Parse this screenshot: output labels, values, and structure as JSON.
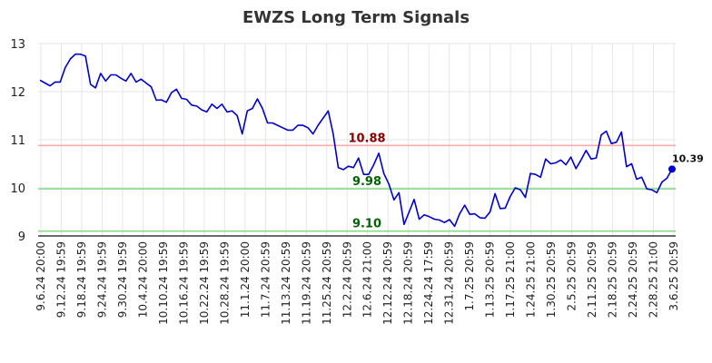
{
  "chart_data": {
    "type": "line",
    "title": "EWZS Long Term Signals",
    "xlabel": "",
    "ylabel": "",
    "ylim": [
      9,
      13
    ],
    "yticks": [
      "9",
      "10",
      "11",
      "12",
      "13"
    ],
    "grid": true,
    "colors": {
      "line": "#0000cc",
      "resistance": "#ffaaaa",
      "support": "#88dd88",
      "resistance_label": "#8b0000",
      "support_label": "#006400",
      "axis": "#111111",
      "grid": "#e6e6e6"
    },
    "xtick_labels": [
      "9.6.24 20:00",
      "9.12.24 19:59",
      "9.18.24 19:59",
      "9.24.24 19:59",
      "9.30.24 19:59",
      "10.4.24 20:00",
      "10.10.24 19:59",
      "10.16.24 19:59",
      "10.22.24 19:59",
      "10.28.24 19:59",
      "11.1.24 20:00",
      "11.7.24 20:59",
      "11.13.24 20:59",
      "11.19.24 20:59",
      "11.25.24 20:59",
      "12.2.24 20:59",
      "12.6.24 21:00",
      "12.12.24 20:59",
      "12.18.24 20:59",
      "12.24.24 17:59",
      "12.31.24 20:59",
      "1.7.25 20:59",
      "1.13.25 20:59",
      "1.17.25 21:00",
      "1.24.25 21:00",
      "1.30.25 20:59",
      "2.5.25 20:59",
      "2.11.25 20:59",
      "2.18.25 20:59",
      "2.24.25 20:59",
      "2.28.25 21:00",
      "3.6.25 20:59"
    ],
    "levels": [
      {
        "value": 10.88,
        "label": "10.88",
        "kind": "resistance"
      },
      {
        "value": 9.98,
        "label": "9.98",
        "kind": "support"
      },
      {
        "value": 9.1,
        "label": "9.10",
        "kind": "support"
      }
    ],
    "last_value_label": "10.39",
    "series": [
      {
        "values": [
          12.24,
          12.18,
          12.12,
          12.2,
          12.2,
          12.5,
          12.68,
          12.78,
          12.78,
          12.74,
          12.15,
          12.08,
          12.38,
          12.22,
          12.35,
          12.35,
          12.28,
          12.22,
          12.38,
          12.2,
          12.26,
          12.18,
          12.1,
          11.82,
          11.83,
          11.78,
          11.98,
          12.05,
          11.86,
          11.84,
          11.72,
          11.7,
          11.62,
          11.58,
          11.74,
          11.65,
          11.74,
          11.58,
          11.6,
          11.5,
          11.12,
          11.6,
          11.65,
          11.85,
          11.65,
          11.35,
          11.35,
          11.3,
          11.25,
          11.2,
          11.2,
          11.3,
          11.3,
          11.25,
          11.12,
          11.3,
          11.45,
          11.6,
          11.12,
          10.42,
          10.38,
          10.45,
          10.42,
          10.62,
          10.28,
          10.28,
          10.48,
          10.72,
          10.3,
          10.08,
          9.75,
          9.9,
          9.24,
          9.5,
          9.76,
          9.35,
          9.44,
          9.4,
          9.35,
          9.33,
          9.28,
          9.34,
          9.2,
          9.46,
          9.64,
          9.45,
          9.46,
          9.38,
          9.37,
          9.5,
          9.88,
          9.57,
          9.58,
          9.82,
          10.0,
          9.96,
          9.8,
          10.3,
          10.28,
          10.22,
          10.6,
          10.5,
          10.52,
          10.58,
          10.48,
          10.64,
          10.4,
          10.58,
          10.78,
          10.6,
          10.62,
          11.1,
          11.18,
          10.92,
          10.95,
          11.16,
          10.44,
          10.5,
          10.18,
          10.22,
          9.98,
          9.96,
          9.9,
          10.12,
          10.2,
          10.39
        ]
      }
    ]
  }
}
